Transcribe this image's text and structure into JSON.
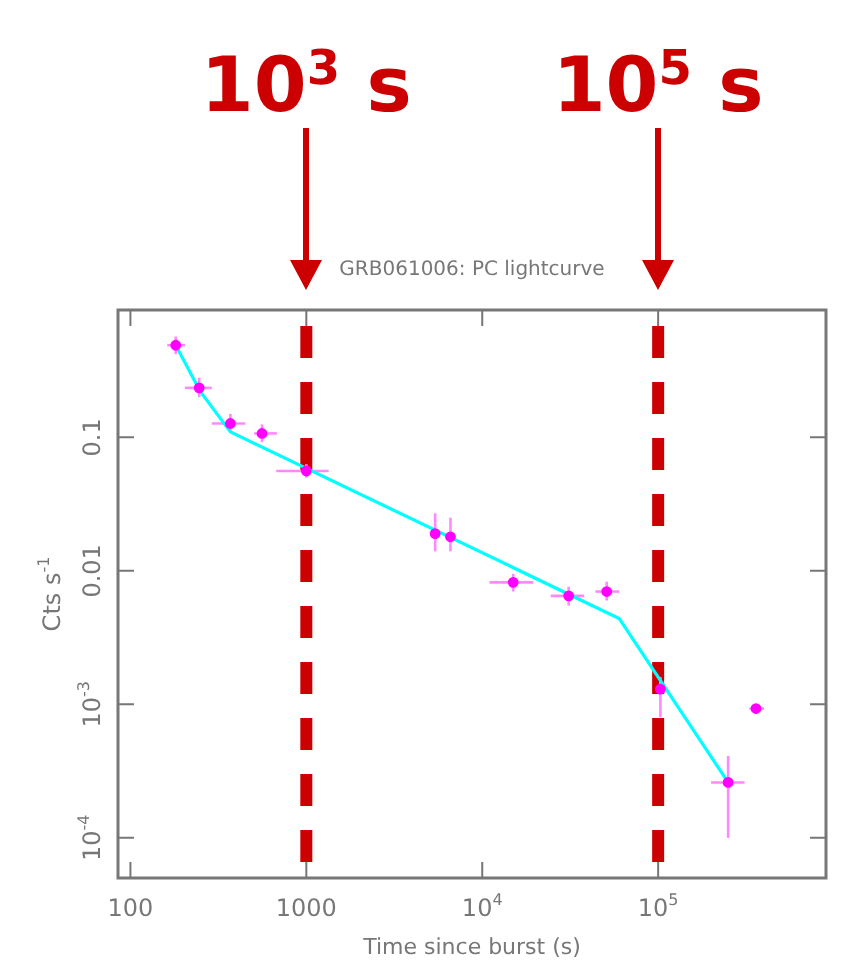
{
  "chart_data": {
    "type": "scatter",
    "title": "GRB061006: PC lightcurve",
    "xlabel": "Time since burst (s)",
    "ylabel": "Cts s$^{-1}$",
    "log": "xy",
    "xlim": [
      85,
      900000
    ],
    "ylim": [
      5e-05,
      0.9
    ],
    "xticks": [
      100,
      1000,
      {
        "value": 10000,
        "label": "10$^{4}$"
      },
      {
        "value": 100000,
        "label": "10$^{5}$"
      }
    ],
    "yticks": [
      {
        "value": 0.0001,
        "label": "10$^{-4}$"
      },
      {
        "value": 0.001,
        "label": "10$^{-3}$"
      },
      0.01,
      0.1
    ],
    "legend": false,
    "marker": "circle",
    "series": [
      {
        "color": "#ff00ff",
        "x": [
          181,
          246,
          370,
          560,
          1000,
          5400,
          6600,
          15000,
          31000,
          51000,
          103000,
          250000,
          360000
        ],
        "values": [
          0.49,
          0.235,
          0.127,
          0.107,
          0.056,
          0.019,
          0.018,
          0.0082,
          0.0065,
          0.007,
          0.0013,
          0.00026,
          0.00093
        ],
        "errors": [
          [
            0.42,
            0.57
          ],
          [
            0.2,
            0.28
          ],
          [
            0.11,
            0.15
          ],
          [
            0.092,
            0.125
          ],
          [
            0.05,
            0.063
          ],
          [
            0.014,
            0.027
          ],
          [
            0.014,
            0.025
          ],
          [
            0.007,
            0.0095
          ],
          [
            0.0055,
            0.0076
          ],
          [
            0.006,
            0.0083
          ],
          [
            0.0008,
            0.0016
          ],
          [
            0.0001,
            0.00041
          ],
          [
            0.00085,
            0.001
          ]
        ],
        "xerrors": [
          [
            162,
            204
          ],
          [
            204,
            290
          ],
          [
            290,
            450
          ],
          [
            505,
            680
          ],
          [
            674,
            1340
          ],
          [
            5200,
            5600
          ],
          [
            6300,
            6900
          ],
          [
            11000,
            19500
          ],
          [
            24500,
            38000
          ],
          [
            44000,
            60000
          ],
          [
            100000,
            106000
          ],
          [
            200000,
            310000
          ],
          [
            330000,
            400000
          ]
        ]
      },
      {
        "type": "line",
        "color": "#00ffff",
        "marker": "none",
        "line_style": "solid",
        "x": [
          181,
          250,
          370,
          60000,
          250000
        ],
        "values": [
          0.49,
          0.22,
          0.11,
          0.0044,
          0.00026
        ]
      }
    ],
    "ref_lines": [
      {
        "axis": "x",
        "value": 1000,
        "label": "10$^{3}$ s",
        "color": "#cc0000",
        "line_style": "dashed"
      },
      {
        "axis": "x",
        "value": 100000,
        "label": "10$^{5}$ s",
        "color": "#cc0000",
        "line_style": "dashed"
      }
    ]
  }
}
